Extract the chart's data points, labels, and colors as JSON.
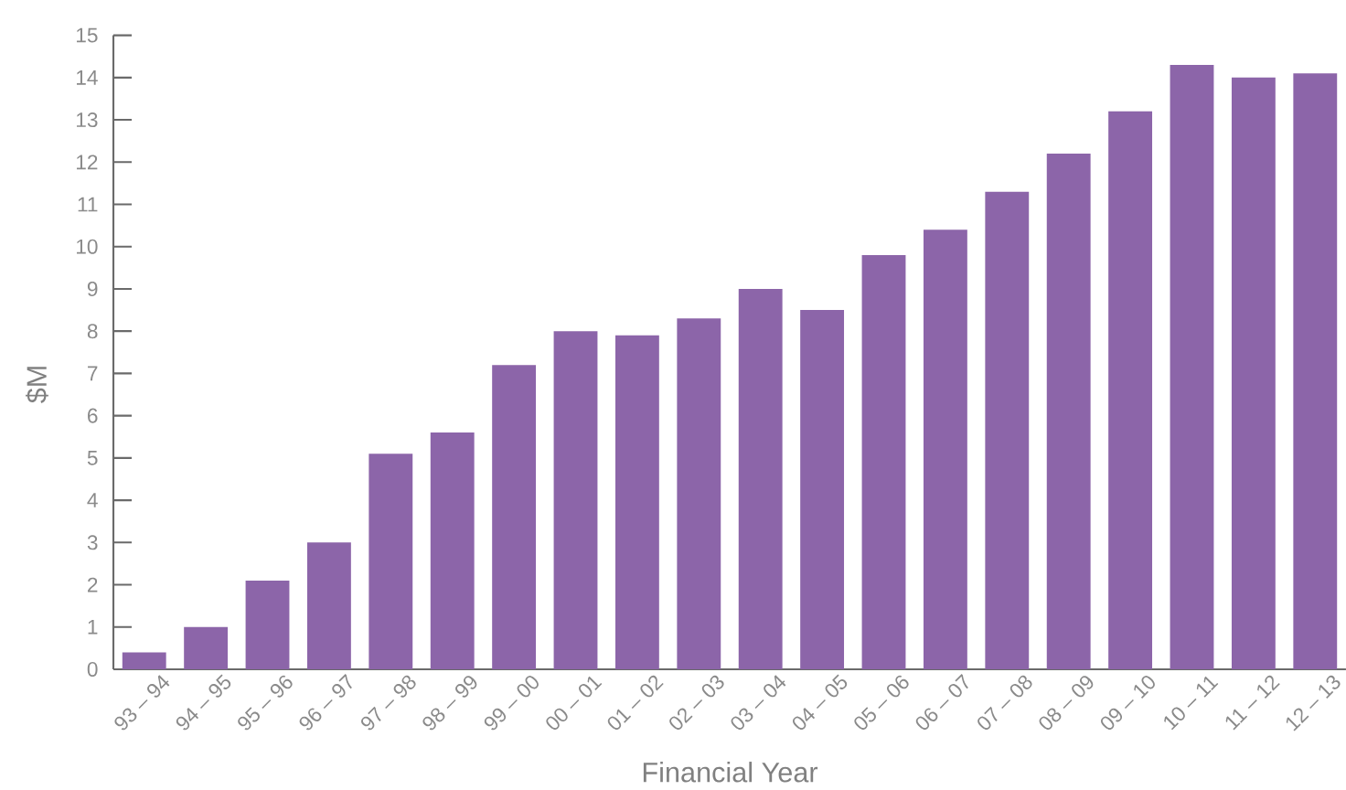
{
  "chart_data": {
    "type": "bar",
    "xlabel": "Financial Year",
    "ylabel": "$M",
    "categories": [
      "93 – 94",
      "94 – 95",
      "95 – 96",
      "96 – 97",
      "97 – 98",
      "98 – 99",
      "99 – 00",
      "00 – 01",
      "01 – 02",
      "02 – 03",
      "03 – 04",
      "04 – 05",
      "05 – 06",
      "06 – 07",
      "07 – 08",
      "08 – 09",
      "09 – 10",
      "10 – 11",
      "11 – 12",
      "12 – 13"
    ],
    "values": [
      0.4,
      1.0,
      2.1,
      3.0,
      5.1,
      5.6,
      7.2,
      8.0,
      7.9,
      8.3,
      9.0,
      8.5,
      9.8,
      10.4,
      11.3,
      12.2,
      13.2,
      14.3,
      14.0,
      14.1
    ],
    "color": "#8c65a9",
    "ylim": [
      0,
      15
    ],
    "yticks": [
      0,
      1,
      2,
      3,
      4,
      5,
      6,
      7,
      8,
      9,
      10,
      11,
      12,
      13,
      14,
      15
    ]
  }
}
